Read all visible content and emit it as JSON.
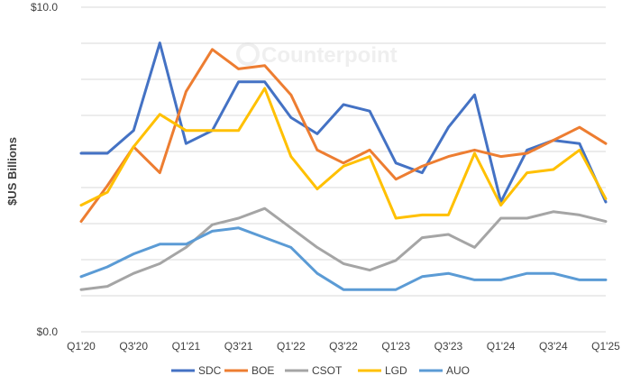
{
  "watermark": "Counterpoint",
  "chart_data": {
    "type": "line",
    "title": "",
    "ylabel": "$US Billions",
    "xlabel": "",
    "ylim": [
      0,
      10
    ],
    "yticks_labeled": [
      "$0.0",
      "$10.0"
    ],
    "grid": true,
    "legend_position": "bottom",
    "categories": [
      "Q1'20",
      "Q2'20",
      "Q3'20",
      "Q4'20",
      "Q1'21",
      "Q2'21",
      "Q3'21",
      "Q4'21",
      "Q1'22",
      "Q2'22",
      "Q3'22",
      "Q4'22",
      "Q1'23",
      "Q2'23",
      "Q3'23",
      "Q4'23",
      "Q1'24",
      "Q2'24",
      "Q3'24",
      "Q4'24",
      "Q1'25"
    ],
    "xtick_labels": [
      "Q1'20",
      "",
      "Q3'20",
      "",
      "Q1'21",
      "",
      "Q3'21",
      "",
      "Q1'22",
      "",
      "Q3'22",
      "",
      "Q1'23",
      "",
      "Q3'23",
      "",
      "Q1'24",
      "",
      "Q3'24",
      "",
      "Q1'25"
    ],
    "series": [
      {
        "name": "SDC",
        "color": "#4472C4",
        "values": [
          5.5,
          5.5,
          6.2,
          8.9,
          5.8,
          6.2,
          7.7,
          7.7,
          6.6,
          6.1,
          7.0,
          6.8,
          5.2,
          4.9,
          6.3,
          7.3,
          4.0,
          5.6,
          5.9,
          5.8,
          4.0
        ]
      },
      {
        "name": "BOE",
        "color": "#ED7D31",
        "values": [
          3.4,
          4.5,
          5.7,
          4.9,
          7.4,
          8.7,
          8.1,
          8.2,
          7.3,
          5.6,
          5.2,
          5.6,
          4.7,
          5.1,
          5.4,
          5.6,
          5.4,
          5.5,
          5.9,
          6.3,
          5.8
        ]
      },
      {
        "name": "CSOT",
        "color": "#A5A5A5",
        "values": [
          1.3,
          1.4,
          1.8,
          2.1,
          2.6,
          3.3,
          3.5,
          3.8,
          3.2,
          2.6,
          2.1,
          1.9,
          2.2,
          2.9,
          3.0,
          2.6,
          3.5,
          3.5,
          3.7,
          3.6,
          3.4
        ]
      },
      {
        "name": "LGD",
        "color": "#FFC000",
        "values": [
          3.9,
          4.3,
          5.7,
          6.7,
          6.2,
          6.2,
          6.2,
          7.5,
          5.4,
          4.4,
          5.1,
          5.4,
          3.5,
          3.6,
          3.6,
          5.5,
          3.9,
          4.9,
          5.0,
          5.6,
          4.1
        ]
      },
      {
        "name": "AUO",
        "color": "#5B9BD5",
        "values": [
          1.7,
          2.0,
          2.4,
          2.7,
          2.7,
          3.1,
          3.2,
          2.9,
          2.6,
          1.8,
          1.3,
          1.3,
          1.3,
          1.7,
          1.8,
          1.6,
          1.6,
          1.8,
          1.8,
          1.6,
          1.6
        ]
      }
    ]
  }
}
